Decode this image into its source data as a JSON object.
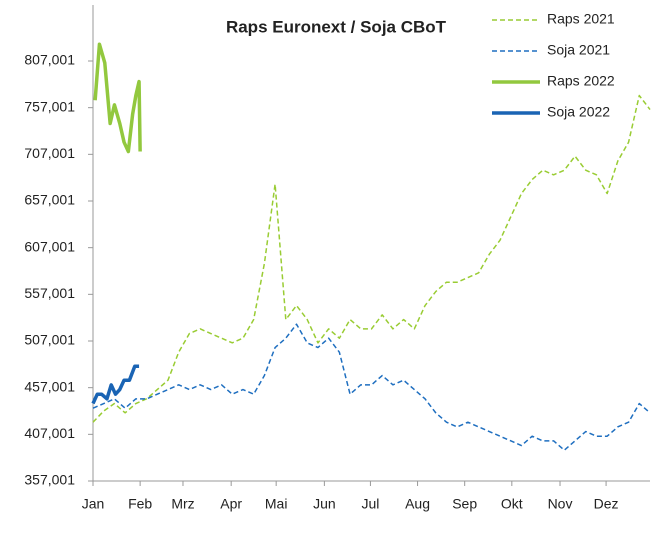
{
  "chart_data": {
    "type": "line",
    "title": "Raps Euronext / Soja CBoT",
    "xlim": [
      0,
      52
    ],
    "xticks": [
      {
        "value": 0,
        "label": "Jan"
      },
      {
        "value": 4.4,
        "label": "Feb"
      },
      {
        "value": 8.4,
        "label": "Mrz"
      },
      {
        "value": 12.9,
        "label": "Apr"
      },
      {
        "value": 17.1,
        "label": "Mai"
      },
      {
        "value": 21.6,
        "label": "Jun"
      },
      {
        "value": 25.9,
        "label": "Jul"
      },
      {
        "value": 30.3,
        "label": "Aug"
      },
      {
        "value": 34.7,
        "label": "Sep"
      },
      {
        "value": 39.1,
        "label": "Okt"
      },
      {
        "value": 43.6,
        "label": "Nov"
      },
      {
        "value": 47.9,
        "label": "Dez"
      }
    ],
    "ylim": [
      357.001,
      867
    ],
    "yticks": [
      {
        "value": 357.001,
        "label": "357,001"
      },
      {
        "value": 407.001,
        "label": "407,001"
      },
      {
        "value": 457.001,
        "label": "457,001"
      },
      {
        "value": 507.001,
        "label": "507,001"
      },
      {
        "value": 557.001,
        "label": "557,001"
      },
      {
        "value": 607.001,
        "label": "607,001"
      },
      {
        "value": 657.001,
        "label": "657,001"
      },
      {
        "value": 707.001,
        "label": "707,001"
      },
      {
        "value": 757.001,
        "label": "757,001"
      },
      {
        "value": 807.001,
        "label": "807,001"
      }
    ],
    "series": [
      {
        "name": "Raps 2021",
        "color": "#99cc33",
        "dash": true,
        "width": 1.5,
        "x": [
          0,
          1,
          2,
          3,
          4,
          5,
          6,
          7,
          8,
          9,
          10,
          11,
          12,
          13,
          14,
          15,
          16,
          17,
          18,
          19,
          20,
          21,
          22,
          23,
          24,
          25,
          26,
          27,
          28,
          29,
          30,
          31,
          32,
          33,
          34,
          35,
          36,
          37,
          38,
          39,
          40,
          41,
          42,
          43,
          44,
          45,
          46,
          47,
          48,
          49,
          50,
          51,
          52
        ],
        "values": [
          420,
          432,
          440,
          430,
          440,
          445,
          455,
          465,
          495,
          515,
          520,
          515,
          510,
          505,
          510,
          530,
          590,
          675,
          530,
          545,
          530,
          505,
          520,
          510,
          530,
          520,
          520,
          535,
          520,
          530,
          520,
          545,
          560,
          570,
          570,
          575,
          580,
          600,
          615,
          640,
          665,
          680,
          690,
          685,
          690,
          705,
          690,
          685,
          665,
          700,
          720,
          770,
          755
        ]
      },
      {
        "name": "Soja 2021",
        "color": "#1f6fc0",
        "dash": true,
        "width": 1.5,
        "x": [
          0,
          1,
          2,
          3,
          4,
          5,
          6,
          7,
          8,
          9,
          10,
          11,
          12,
          13,
          14,
          15,
          16,
          17,
          18,
          19,
          20,
          21,
          22,
          23,
          24,
          25,
          26,
          27,
          28,
          29,
          30,
          31,
          32,
          33,
          34,
          35,
          36,
          37,
          38,
          39,
          40,
          41,
          42,
          43,
          44,
          45,
          46,
          47,
          48,
          49,
          50,
          51,
          52
        ],
        "values": [
          435,
          440,
          445,
          435,
          445,
          445,
          450,
          455,
          460,
          455,
          460,
          455,
          460,
          450,
          455,
          450,
          470,
          500,
          510,
          525,
          505,
          500,
          510,
          495,
          450,
          460,
          460,
          470,
          460,
          465,
          455,
          445,
          430,
          420,
          415,
          420,
          415,
          410,
          405,
          400,
          395,
          405,
          400,
          400,
          390,
          400,
          410,
          405,
          405,
          415,
          420,
          440,
          430
        ]
      },
      {
        "name": "Raps 2022",
        "color": "#92c83e",
        "dash": false,
        "width": 3.5,
        "x": [
          0.2,
          0.6,
          1.1,
          1.6,
          2.0,
          2.5,
          2.9,
          3.3,
          3.7,
          4.0,
          4.3,
          4.4
        ],
        "values": [
          765,
          825,
          805,
          740,
          760,
          740,
          720,
          710,
          750,
          770,
          785,
          710
        ]
      },
      {
        "name": "Soja 2022",
        "color": "#1a64b4",
        "dash": false,
        "width": 3.5,
        "x": [
          0,
          0.4,
          0.8,
          1.3,
          1.7,
          2.1,
          2.5,
          2.9,
          3.4,
          3.9,
          4.3
        ],
        "values": [
          440,
          450,
          450,
          445,
          460,
          450,
          455,
          465,
          465,
          480,
          480
        ]
      }
    ]
  }
}
